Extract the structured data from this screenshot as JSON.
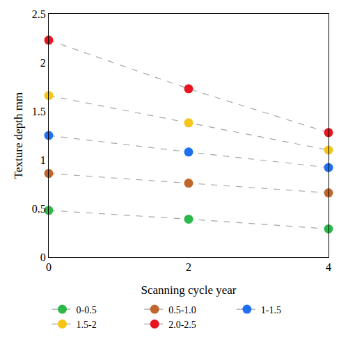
{
  "chart_data": {
    "type": "scatter",
    "x_label": "Scanning cycle year",
    "y_label": "Texture depth mm",
    "x": [
      0,
      2,
      4
    ],
    "series": [
      {
        "name": "0-0.5",
        "color": "#2db84a",
        "values": [
          0.48,
          0.39,
          0.29
        ]
      },
      {
        "name": "0.5-1.0",
        "color": "#c0662c",
        "values": [
          0.86,
          0.76,
          0.66
        ]
      },
      {
        "name": "1-1.5",
        "color": "#1f6ff0",
        "values": [
          1.25,
          1.08,
          0.92
        ]
      },
      {
        "name": "1.5-2",
        "color": "#f5c518",
        "values": [
          1.66,
          1.38,
          1.1
        ]
      },
      {
        "name": "2.0-2.5",
        "color": "#e8141e",
        "values": [
          2.23,
          1.73,
          1.28
        ]
      }
    ],
    "xlim": [
      0,
      4
    ],
    "xticks": [
      0,
      2,
      4
    ],
    "ylim": [
      0,
      2.5
    ],
    "yticks": [
      0,
      0.5,
      1,
      1.5,
      2,
      2.5
    ],
    "grid": false,
    "legend": "bottom",
    "marker": "circle",
    "line_style": "dashed"
  }
}
